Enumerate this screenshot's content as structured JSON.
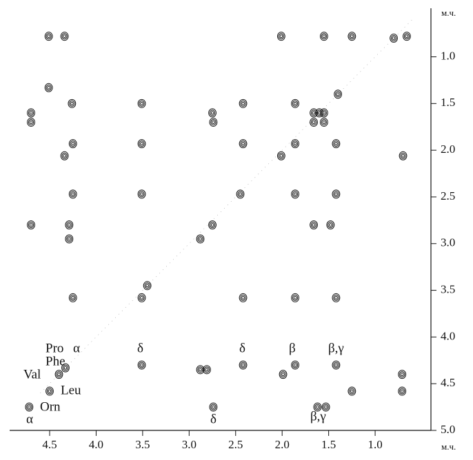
{
  "chart_data": {
    "type": "contour",
    "x_label": "м.ч.",
    "y_label": "м.ч.",
    "xlim": [
      4.93,
      0.4
    ],
    "ylim": [
      0.48,
      5.0
    ],
    "xticks": [
      4.5,
      {
        "value": 4,
        "label": "4.0"
      },
      3.5,
      {
        "value": 3,
        "label": "3.0"
      },
      2.5,
      {
        "value": 2,
        "label": "2.0"
      },
      1.5,
      {
        "value": 1,
        "label": "1.0"
      }
    ],
    "yticks": [
      {
        "value": 1,
        "label": "1.0"
      },
      1.5,
      {
        "value": 2,
        "label": "2.0"
      },
      2.5,
      {
        "value": 3,
        "label": "3.0"
      },
      3.5,
      {
        "value": 4,
        "label": "4.0"
      },
      4.5,
      {
        "value": 5,
        "label": "5.0"
      }
    ],
    "color": "#111111",
    "x": [
      4.51,
      4.34,
      2.01,
      1.55,
      1.25,
      0.66,
      4.51,
      4.26,
      3.51,
      2.42,
      1.86,
      4.7,
      2.75,
      1.66,
      1.55,
      4.7,
      2.74,
      1.66,
      1.55,
      4.25,
      3.51,
      2.42,
      1.86,
      1.42,
      4.34,
      2.01,
      0.7,
      4.25,
      3.51,
      1.86,
      1.42,
      4.7,
      4.29,
      1.66,
      1.48,
      4.29,
      2.88,
      4.25,
      3.51,
      2.42,
      1.86,
      1.42,
      3.51,
      2.88,
      2.81,
      2.42,
      1.86,
      1.42,
      1.99,
      0.71,
      4.5,
      1.25,
      0.71,
      4.72,
      2.74,
      1.62,
      1.53,
      3.45,
      2.75,
      2.45,
      1.6,
      1.4,
      0.8,
      4.4,
      4.33
    ],
    "values": [
      0.78,
      0.78,
      0.78,
      0.78,
      0.78,
      0.78,
      1.33,
      1.5,
      1.5,
      1.5,
      1.5,
      1.6,
      1.6,
      1.6,
      1.6,
      1.7,
      1.7,
      1.7,
      1.7,
      1.93,
      1.93,
      1.93,
      1.93,
      1.93,
      2.06,
      2.06,
      2.06,
      2.47,
      2.47,
      2.47,
      2.47,
      2.8,
      2.8,
      2.8,
      2.8,
      2.95,
      2.95,
      3.58,
      3.58,
      3.58,
      3.58,
      3.58,
      4.3,
      4.35,
      4.35,
      4.3,
      4.3,
      4.3,
      4.4,
      4.4,
      4.58,
      4.58,
      4.58,
      4.75,
      4.75,
      4.75,
      4.75,
      3.45,
      2.8,
      2.47,
      1.6,
      1.4,
      0.8,
      4.4,
      4.33
    ],
    "annotations": [
      "Pro",
      "α",
      "Phe",
      "Val",
      "Leu",
      "Orn",
      "α",
      "δ",
      "δ",
      "β",
      "β,γ",
      "δ",
      "β,γ"
    ]
  }
}
